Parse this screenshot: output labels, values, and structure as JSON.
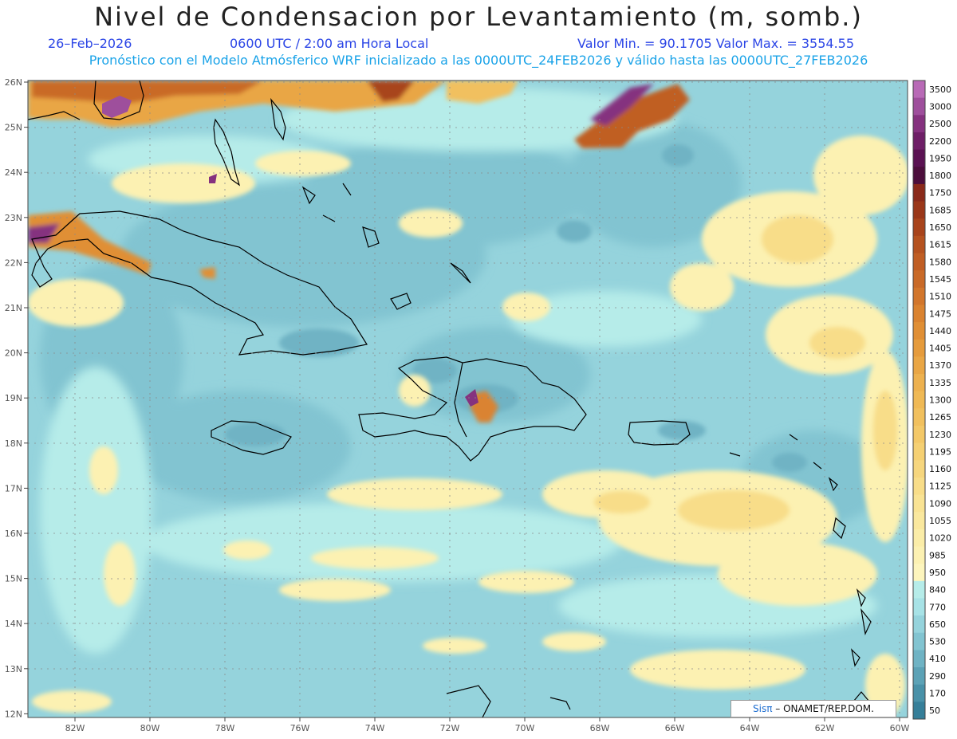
{
  "title": "Nivel de Condensacion por Levantamiento (m, somb.)",
  "date": "26–Feb–2026",
  "time": "0600 UTC / 2:00 am Hora Local",
  "min_max": "Valor Min. = 90.1705   Valor Max. = 3554.55",
  "model_info": "Pronóstico con el Modelo Atmósferico WRF inicializado a las 0000UTC_24FEB2026 y válido hasta las  0000UTC_27FEB2026",
  "credit": {
    "logo": "Sisπ",
    "text": " –  ONAMET/REP.DOM."
  },
  "lat_labels": [
    "26N",
    "25N",
    "24N",
    "23N",
    "22N",
    "21N",
    "20N",
    "19N",
    "18N",
    "17N",
    "16N",
    "15N",
    "14N",
    "13N",
    "12N"
  ],
  "lon_labels": [
    "82W",
    "80W",
    "78W",
    "76W",
    "74W",
    "72W",
    "70W",
    "68W",
    "66W",
    "64W",
    "62W",
    "60W"
  ],
  "colorbar": [
    {
      "label": "3500",
      "color": "#b86ab6"
    },
    {
      "label": "3000",
      "color": "#9e4f9c"
    },
    {
      "label": "2500",
      "color": "#85327f"
    },
    {
      "label": "2200",
      "color": "#6e1f67"
    },
    {
      "label": "1950",
      "color": "#5a1252"
    },
    {
      "label": "1800",
      "color": "#4c0e3c"
    },
    {
      "label": "1750",
      "color": "#8a2a1a"
    },
    {
      "label": "1685",
      "color": "#9a3719"
    },
    {
      "label": "1650",
      "color": "#a8441c"
    },
    {
      "label": "1615",
      "color": "#b55220"
    },
    {
      "label": "1580",
      "color": "#c05e24"
    },
    {
      "label": "1545",
      "color": "#c96a28"
    },
    {
      "label": "1510",
      "color": "#d2762c"
    },
    {
      "label": "1475",
      "color": "#da8330"
    },
    {
      "label": "1440",
      "color": "#e08f35"
    },
    {
      "label": "1405",
      "color": "#e59b3c"
    },
    {
      "label": "1370",
      "color": "#e9a645"
    },
    {
      "label": "1335",
      "color": "#edb14f"
    },
    {
      "label": "1300",
      "color": "#efb955"
    },
    {
      "label": "1265",
      "color": "#f1c05e"
    },
    {
      "label": "1230",
      "color": "#f3c868"
    },
    {
      "label": "1195",
      "color": "#f5d073"
    },
    {
      "label": "1160",
      "color": "#f6d67e"
    },
    {
      "label": "1125",
      "color": "#f8dd89"
    },
    {
      "label": "1090",
      "color": "#f9e394"
    },
    {
      "label": "1055",
      "color": "#fae89e"
    },
    {
      "label": "1020",
      "color": "#fbeda8"
    },
    {
      "label": "985",
      "color": "#fcf1b2"
    },
    {
      "label": "950",
      "color": "#fdf5bd"
    },
    {
      "label": "840",
      "color": "#b6ece9"
    },
    {
      "label": "770",
      "color": "#a7e2e6"
    },
    {
      "label": "650",
      "color": "#95d3dc"
    },
    {
      "label": "530",
      "color": "#82c4d1"
    },
    {
      "label": "410",
      "color": "#6fb3c4"
    },
    {
      "label": "290",
      "color": "#5ca2b6"
    },
    {
      "label": "170",
      "color": "#4991a8"
    },
    {
      "label": "50",
      "color": "#367f99"
    }
  ]
}
